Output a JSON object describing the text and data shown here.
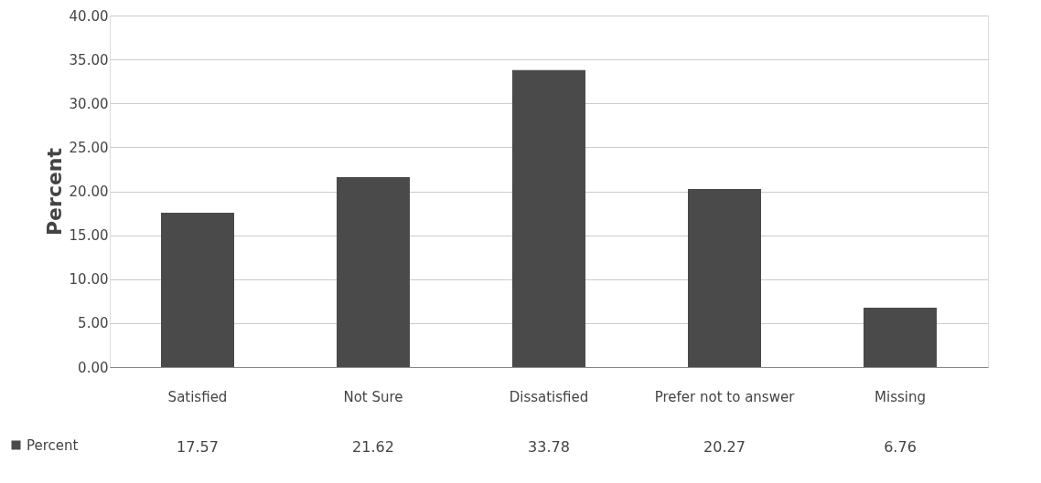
{
  "chart_data": {
    "type": "bar",
    "ylabel": "Percent",
    "categories": [
      "Satisfied",
      "Not Sure",
      "Dissatisfied",
      "Prefer not to answer",
      "Missing"
    ],
    "series": [
      {
        "name": "Percent",
        "color": "#4a4a4a",
        "values": [
          17.57,
          21.62,
          33.78,
          20.27,
          6.76
        ]
      }
    ],
    "ylim": [
      0,
      40
    ],
    "yticks": [
      {
        "value": 0,
        "label": "0.00"
      },
      {
        "value": 5,
        "label": "5.00"
      },
      {
        "value": 10,
        "label": "10.00"
      },
      {
        "value": 15,
        "label": "15.00"
      },
      {
        "value": 20,
        "label": "20.00"
      },
      {
        "value": 25,
        "label": "25.00"
      },
      {
        "value": 30,
        "label": "30.00"
      },
      {
        "value": 35,
        "label": "35.00"
      },
      {
        "value": 40,
        "label": "40.00"
      }
    ],
    "grid": "y",
    "legend": "bottom left",
    "data_labels": true
  }
}
